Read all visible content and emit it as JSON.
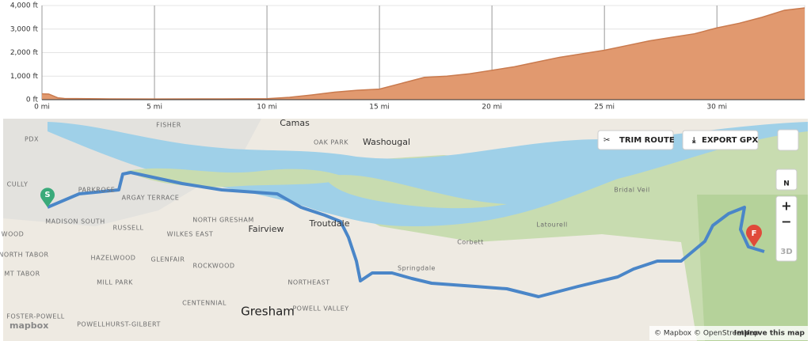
{
  "chart_data": {
    "type": "area",
    "color": "#e1996f",
    "line_color": "#c97a4e",
    "grid": true,
    "x": [
      0,
      0.3,
      0.7,
      1,
      3,
      5,
      8,
      10,
      11,
      12,
      13,
      14,
      15,
      16,
      17,
      18,
      19,
      20,
      21,
      22,
      23,
      24,
      25,
      26,
      27,
      28,
      29,
      30,
      31,
      32,
      33,
      33.9
    ],
    "values": [
      250,
      240,
      80,
      50,
      35,
      30,
      35,
      40,
      100,
      200,
      320,
      400,
      450,
      700,
      950,
      1000,
      1100,
      1250,
      1400,
      1600,
      1800,
      1950,
      2100,
      2300,
      2500,
      2650,
      2800,
      3050,
      3250,
      3500,
      3800,
      3900
    ],
    "xlim": [
      0,
      33.9
    ],
    "ylim": [
      0,
      4000
    ],
    "xticks": [
      {
        "value": 0,
        "label": "0 mi"
      },
      {
        "value": 5,
        "label": "5 mi"
      },
      {
        "value": 10,
        "label": "10 mi"
      },
      {
        "value": 15,
        "label": "15 mi"
      },
      {
        "value": 20,
        "label": "20 mi"
      },
      {
        "value": 25,
        "label": "25 mi"
      },
      {
        "value": 30,
        "label": "30 mi"
      }
    ],
    "yticks": [
      {
        "value": 0,
        "label": "0 ft"
      },
      {
        "value": 1000,
        "label": "1,000 ft"
      },
      {
        "value": 2000,
        "label": "2,000 ft"
      },
      {
        "value": 3000,
        "label": "3,000 ft"
      },
      {
        "value": 4000,
        "label": "4,000 ft"
      }
    ]
  },
  "map": {
    "start": "S",
    "finish": "F",
    "buttons": [
      "TRIM ROUTE",
      "EXPORT GPX",
      "N",
      "3D"
    ],
    "logo": "mapbox",
    "attribution": "© Mapbox © OpenStreetMap",
    "improve": "Improve this map",
    "labels": [
      "PDX",
      "FISHER",
      "Camas",
      "OAK PARK",
      "Washougal",
      "CULLY",
      "PARKROSE",
      "ARGAY TERRACE",
      "MADISON SOUTH",
      "RUSSELL",
      "WILKES EAST",
      "NORTH GRESHAM",
      "Fairview",
      "Troutdale",
      "Corbett",
      "Latourell",
      "Bridal Veil",
      "WOOD",
      "NORTH TABOR",
      "HAZELWOOD",
      "GLENFAIR",
      "ROCKWOOD",
      "Springdale",
      "MT TABOR",
      "MILL PARK",
      "NORTHEAST",
      "CENTENNIAL",
      "Gresham",
      "POWELL VALLEY",
      "FOSTER-POWELL",
      "POWELLHURST-GILBERT"
    ]
  }
}
